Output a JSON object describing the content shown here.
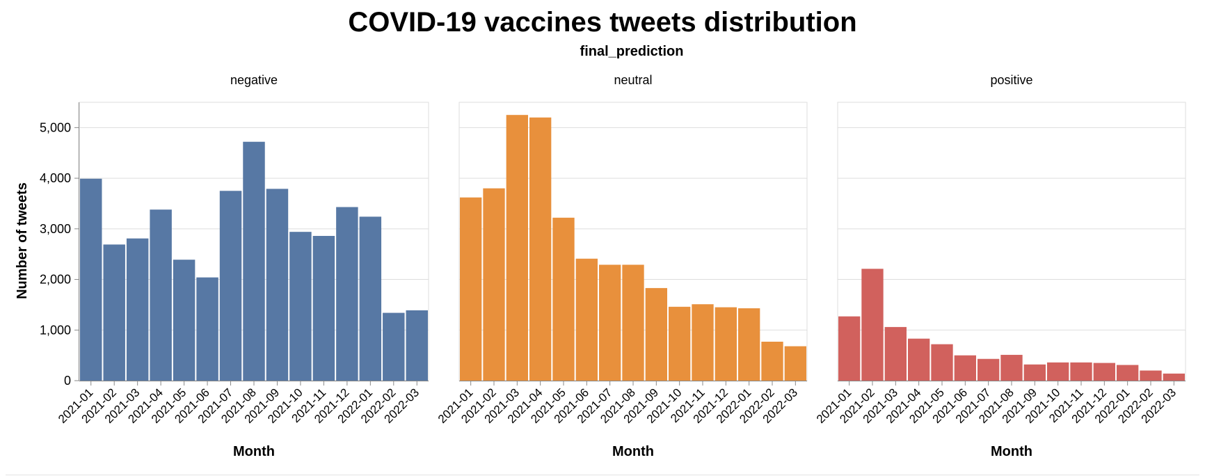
{
  "chart_data": {
    "type": "bar",
    "title": "COVID-19 vaccines tweets distribution",
    "facet_title": "final_prediction",
    "xlabel": "Month",
    "ylabel": "Number of tweets",
    "ylim": [
      0,
      5500
    ],
    "yticks": [
      0,
      1000,
      2000,
      3000,
      4000,
      5000
    ],
    "ytick_labels": [
      "0",
      "1,000",
      "2,000",
      "3,000",
      "4,000",
      "5,000"
    ],
    "grid": true,
    "categories": [
      "2021-01",
      "2021-02",
      "2021-03",
      "2021-04",
      "2021-05",
      "2021-06",
      "2021-07",
      "2021-08",
      "2021-09",
      "2021-10",
      "2021-11",
      "2021-12",
      "2022-01",
      "2022-02",
      "2022-03"
    ],
    "series": [
      {
        "name": "negative",
        "color": "#5778a4",
        "values": [
          3990,
          2690,
          2810,
          3380,
          2390,
          2040,
          3750,
          4720,
          3790,
          2940,
          2860,
          3430,
          3240,
          1340,
          1390
        ]
      },
      {
        "name": "neutral",
        "color": "#e8903c",
        "values": [
          3620,
          3800,
          5250,
          5200,
          3220,
          2410,
          2290,
          2290,
          1830,
          1460,
          1510,
          1450,
          1430,
          770,
          680
        ]
      },
      {
        "name": "positive",
        "color": "#d1615d",
        "values": [
          1270,
          2210,
          1060,
          830,
          720,
          500,
          430,
          510,
          320,
          360,
          360,
          350,
          310,
          200,
          140
        ]
      }
    ]
  }
}
